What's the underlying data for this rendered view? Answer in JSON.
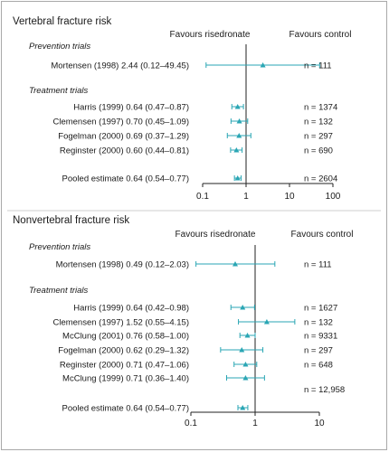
{
  "chart_data": [
    {
      "type": "forest",
      "title": "Vertebral fracture risk",
      "left_label": "Favours risedronate",
      "right_label": "Favours control",
      "scale": "log",
      "xlim": [
        0.1,
        100
      ],
      "xticks": [
        "0.1",
        "1",
        "10",
        "100"
      ],
      "groups": [
        {
          "heading": "Prevention trials",
          "studies": [
            {
              "label": "Mortensen (1998) 2.44 (0.12–49.45)",
              "estimate": 2.44,
              "lower": 0.12,
              "upper": 49.45,
              "n": "n = 111"
            }
          ]
        },
        {
          "heading": "Treatment trials",
          "studies": [
            {
              "label": "Harris (1999) 0.64 (0.47–0.87)",
              "estimate": 0.64,
              "lower": 0.47,
              "upper": 0.87,
              "n": "n = 1374"
            },
            {
              "label": "Clemensen (1997) 0.70 (0.45–1.09)",
              "estimate": 0.7,
              "lower": 0.45,
              "upper": 1.09,
              "n": "n = 132"
            },
            {
              "label": "Fogelman (2000) 0.69 (0.37–1.29)",
              "estimate": 0.69,
              "lower": 0.37,
              "upper": 1.29,
              "n": "n = 297"
            },
            {
              "label": "Reginster (2000) 0.60 (0.44–0.81)",
              "estimate": 0.6,
              "lower": 0.44,
              "upper": 0.81,
              "n": "n = 690"
            }
          ]
        }
      ],
      "pooled": {
        "label": "Pooled estimate 0.64 (0.54–0.77)",
        "estimate": 0.64,
        "lower": 0.54,
        "upper": 0.77,
        "n": "n = 2604"
      },
      "marker_color": "#2aa6b4"
    },
    {
      "type": "forest",
      "title": "Nonvertebral fracture risk",
      "left_label": "Favours risedronate",
      "right_label": "Favours control",
      "scale": "log",
      "xlim": [
        0.1,
        10
      ],
      "xticks": [
        "0.1",
        "1",
        "10"
      ],
      "groups": [
        {
          "heading": "Prevention trials",
          "studies": [
            {
              "label": "Mortensen (1998) 0.49 (0.12–2.03)",
              "estimate": 0.49,
              "lower": 0.12,
              "upper": 2.03,
              "n": "n = 111"
            }
          ]
        },
        {
          "heading": "Treatment trials",
          "studies": [
            {
              "label": "Harris (1999) 0.64 (0.42–0.98)",
              "estimate": 0.64,
              "lower": 0.42,
              "upper": 0.98,
              "n": "n = 1627"
            },
            {
              "label": "Clemensen (1997) 1.52 (0.55–4.15)",
              "estimate": 1.52,
              "lower": 0.55,
              "upper": 4.15,
              "n": "n = 132"
            },
            {
              "label": "McClung (2001) 0.76 (0.58–1.00)",
              "estimate": 0.76,
              "lower": 0.58,
              "upper": 1.0,
              "n": "n = 9331"
            },
            {
              "label": "Fogelman (2000) 0.62 (0.29–1.32)",
              "estimate": 0.62,
              "lower": 0.29,
              "upper": 1.32,
              "n": "n = 297"
            },
            {
              "label": "Reginster (2000) 0.71 (0.47–1.06)",
              "estimate": 0.71,
              "lower": 0.47,
              "upper": 1.06,
              "n": "n = 648"
            },
            {
              "label": "McClung (1999) 0.71 (0.36–1.40)",
              "estimate": 0.71,
              "lower": 0.36,
              "upper": 1.4,
              "n": ""
            }
          ]
        }
      ],
      "extra_n": "n = 12,958",
      "pooled": {
        "label": "Pooled estimate 0.64 (0.54–0.77)",
        "estimate": 0.64,
        "lower": 0.54,
        "upper": 0.77,
        "n": ""
      },
      "marker_color": "#2aa6b4"
    }
  ]
}
